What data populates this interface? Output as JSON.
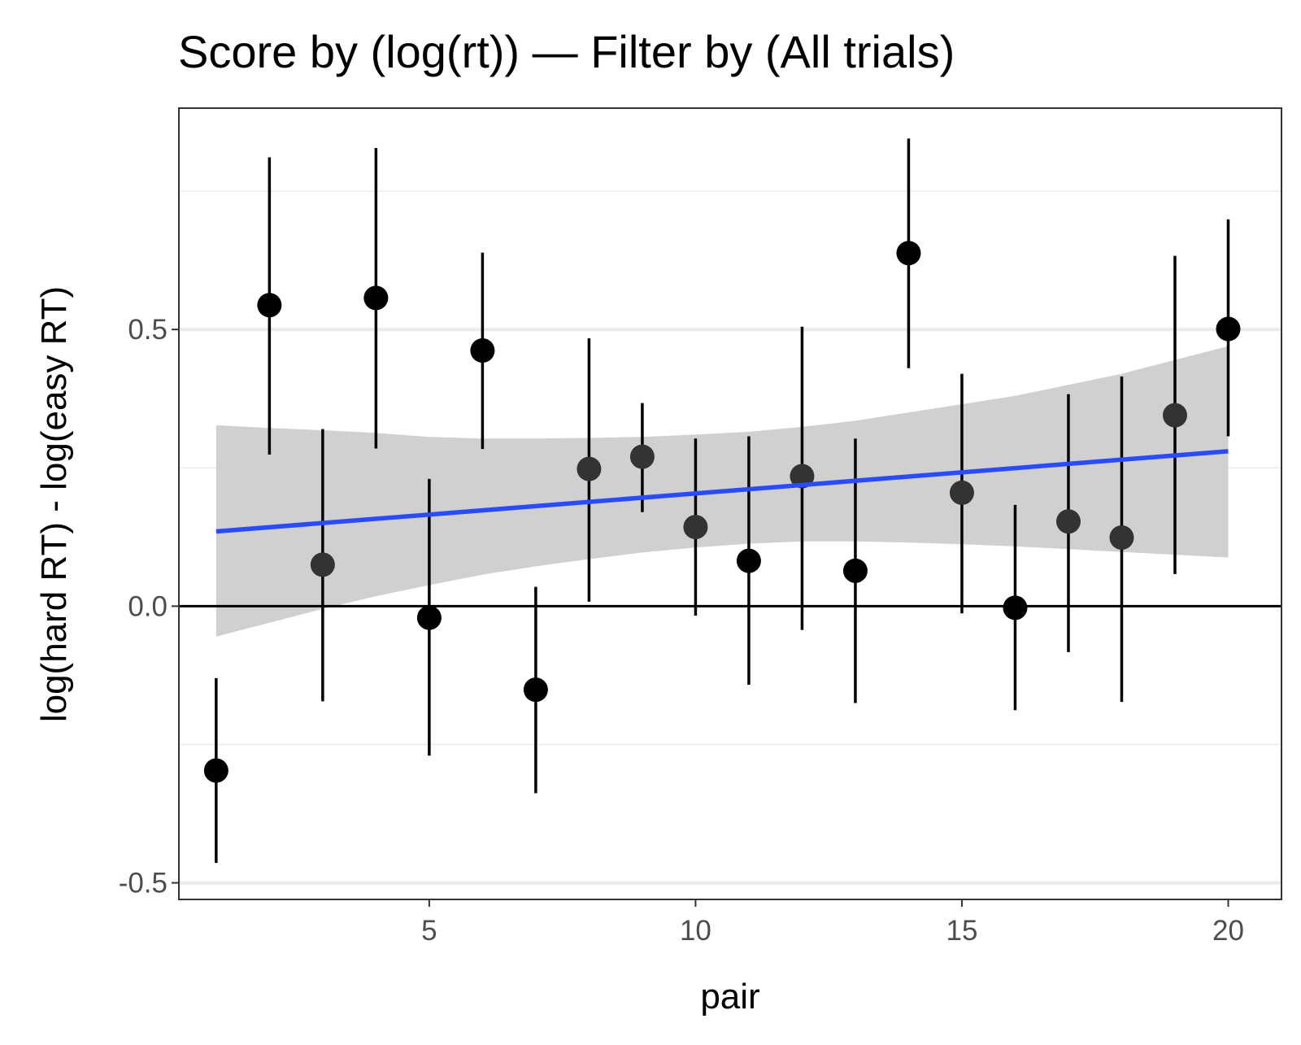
{
  "chart_data": {
    "type": "scatter",
    "title": "Score by (log(rt)) — Filter by (All trials)",
    "xlabel": "pair",
    "ylabel": "log(hard RT) - log(easy RT)",
    "xlim": [
      0.3,
      21.0
    ],
    "ylim": [
      -0.53,
      0.9
    ],
    "x_ticks": [
      5,
      10,
      15,
      20
    ],
    "x_tick_labels": [
      "5",
      "10",
      "15",
      "20"
    ],
    "y_ticks": [
      -0.5,
      0.0,
      0.5
    ],
    "y_tick_labels": [
      "-0.5",
      "0.0",
      "0.5"
    ],
    "y_minor_gridlines": [
      -0.25,
      0.25,
      0.75
    ],
    "grid": true,
    "reference_line": {
      "y": 0,
      "color": "#000000"
    },
    "series": [
      {
        "x": [
          1,
          2,
          3,
          4,
          5,
          6,
          7,
          8,
          9,
          10,
          11,
          12,
          13,
          14,
          15,
          16,
          17,
          18,
          19,
          20
        ],
        "y": [
          -0.297,
          0.544,
          0.075,
          0.557,
          -0.021,
          0.462,
          -0.151,
          0.248,
          0.27,
          0.143,
          0.082,
          0.235,
          0.064,
          0.638,
          0.205,
          -0.003,
          0.153,
          0.124,
          0.345,
          0.501
        ],
        "lower": [
          -0.464,
          0.274,
          -0.172,
          0.285,
          -0.27,
          0.284,
          -0.338,
          0.008,
          0.17,
          -0.017,
          -0.142,
          -0.043,
          -0.175,
          0.43,
          -0.013,
          -0.188,
          -0.083,
          -0.173,
          0.058,
          0.307
        ],
        "upper": [
          -0.13,
          0.811,
          0.32,
          0.828,
          0.23,
          0.639,
          0.035,
          0.484,
          0.367,
          0.303,
          0.307,
          0.505,
          0.303,
          0.845,
          0.42,
          0.183,
          0.383,
          0.415,
          0.633,
          0.699
        ]
      }
    ],
    "point_colors": [
      "#000000",
      "#000000",
      "#333333",
      "#000000",
      "#000000",
      "#000000",
      "#000000",
      "#333333",
      "#333333",
      "#333333",
      "#000000",
      "#333333",
      "#000000",
      "#000000",
      "#333333",
      "#000000",
      "#333333",
      "#333333",
      "#333333",
      "#000000"
    ],
    "fit": {
      "type": "linear",
      "x": [
        1,
        20
      ],
      "y": [
        0.135,
        0.28
      ],
      "color": "#2a4bff",
      "ribbon": {
        "x": [
          1,
          2,
          3,
          4,
          5,
          6,
          7,
          8,
          9,
          10,
          11,
          12,
          13,
          14,
          15,
          16,
          17,
          18,
          19,
          20
        ],
        "lower": [
          -0.055,
          -0.03,
          -0.005,
          0.018,
          0.038,
          0.057,
          0.072,
          0.085,
          0.097,
          0.106,
          0.113,
          0.117,
          0.117,
          0.115,
          0.112,
          0.108,
          0.103,
          0.098,
          0.093,
          0.088
        ],
        "upper": [
          0.327,
          0.322,
          0.318,
          0.313,
          0.306,
          0.303,
          0.303,
          0.304,
          0.306,
          0.31,
          0.315,
          0.324,
          0.335,
          0.35,
          0.365,
          0.38,
          0.4,
          0.42,
          0.445,
          0.47
        ],
        "color": "#d0d0d0"
      }
    },
    "colors": {
      "point": "#000000",
      "errorbar": "#000000",
      "panel_border": "#333333",
      "grid": "#ebebeb",
      "tick_label": "#4d4d4d"
    }
  }
}
